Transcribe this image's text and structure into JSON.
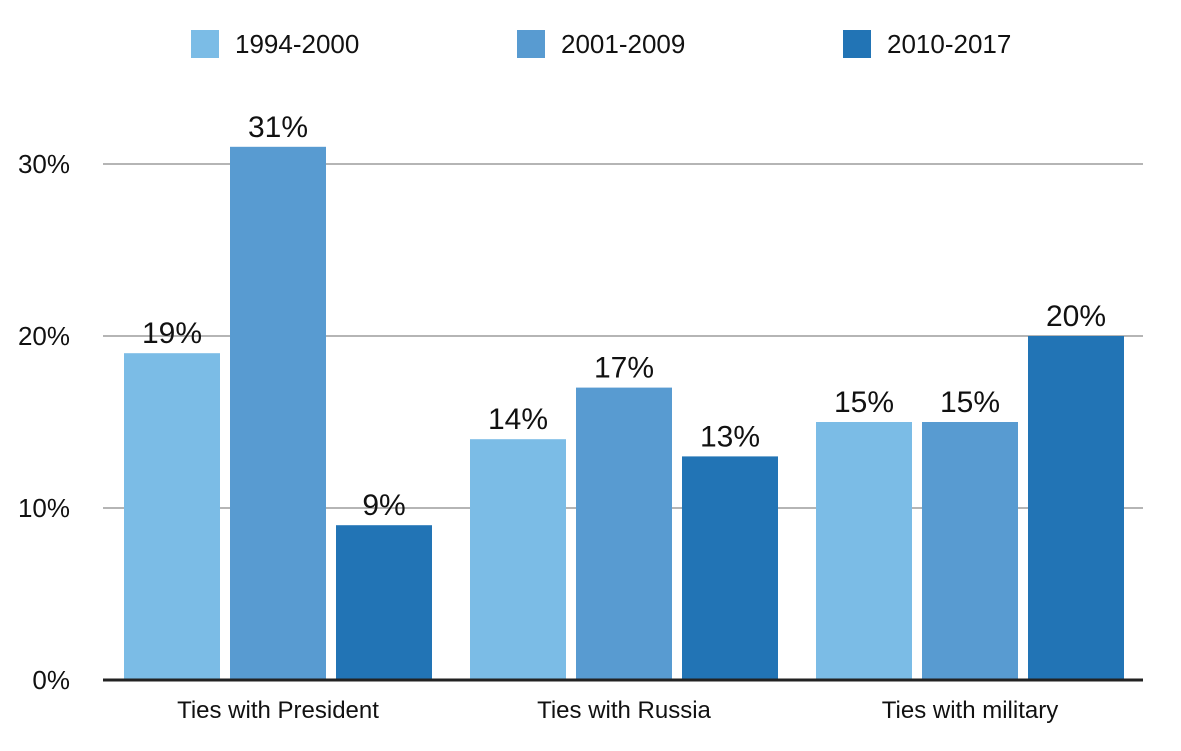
{
  "chart_data": {
    "type": "bar",
    "title": "",
    "xlabel": "",
    "ylabel": "",
    "ylim": [
      0,
      35
    ],
    "yticks": [
      0,
      10,
      20,
      30
    ],
    "ytick_labels": [
      "0%",
      "10%",
      "20%",
      "30%"
    ],
    "grid": "horizontal",
    "legend_position": "top",
    "categories": [
      "Ties with President",
      "Ties with Russia",
      "Ties with military"
    ],
    "series": [
      {
        "name": "1994-2000",
        "color": "#7bbce6",
        "values": [
          19,
          14,
          15
        ],
        "labels": [
          "19%",
          "14%",
          "15%"
        ]
      },
      {
        "name": "2001-2009",
        "color": "#589bd1",
        "values": [
          31,
          17,
          15
        ],
        "labels": [
          "31%",
          "17%",
          "15%"
        ]
      },
      {
        "name": "2010-2017",
        "color": "#2274b5",
        "values": [
          9,
          13,
          20
        ],
        "labels": [
          "9%",
          "13%",
          "20%"
        ]
      }
    ]
  }
}
